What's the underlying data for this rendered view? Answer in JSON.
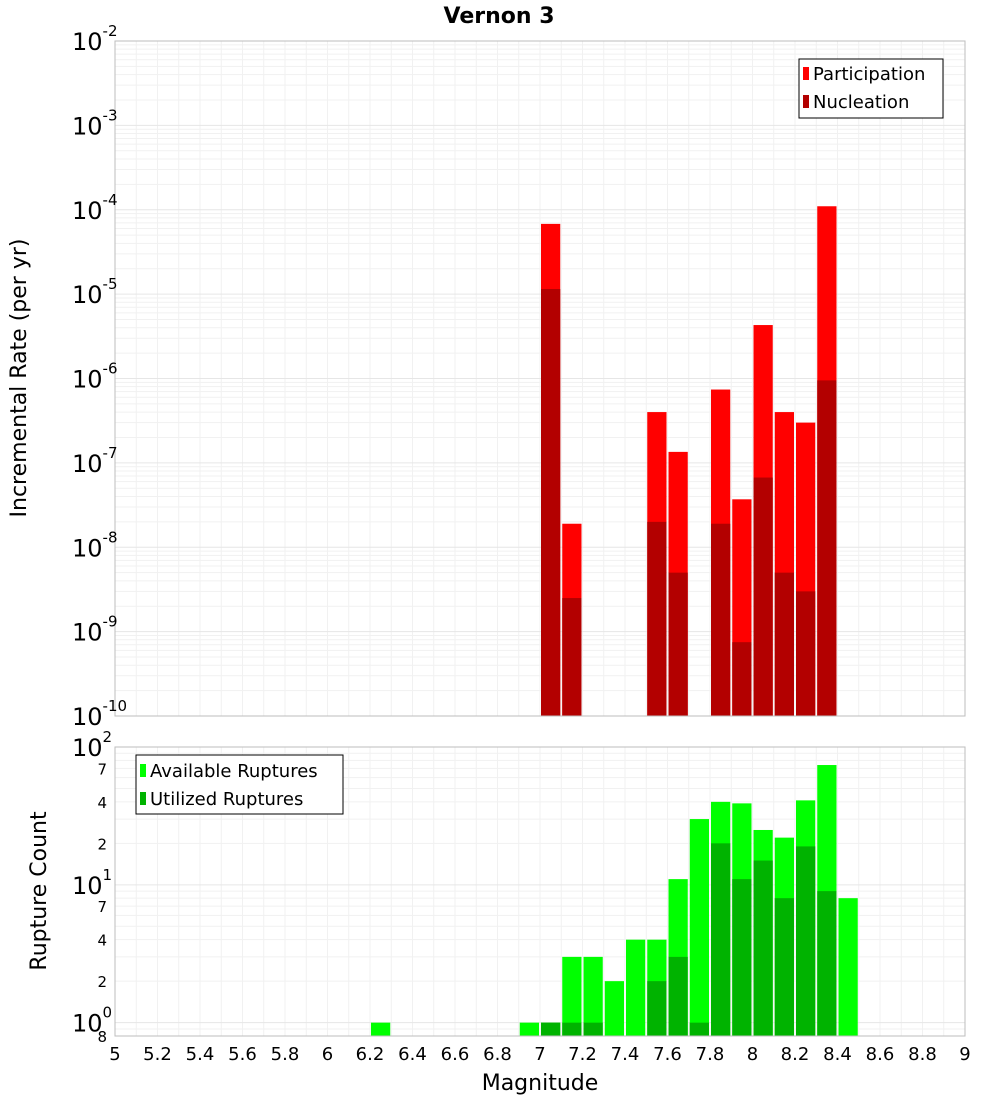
{
  "title": "Vernon 3",
  "xlabel": "Magnitude",
  "xlim": [
    5,
    9
  ],
  "x_ticks": [
    "5",
    "5.2",
    "5.4",
    "5.6",
    "5.8",
    "6",
    "6.2",
    "6.4",
    "6.6",
    "6.8",
    "7",
    "7.2",
    "7.4",
    "7.6",
    "7.8",
    "8",
    "8.2",
    "8.4",
    "8.6",
    "8.8",
    "9"
  ],
  "chart_data": [
    {
      "type": "bar",
      "title": "Vernon 3",
      "xlabel": "Magnitude",
      "ylabel": "Incremental Rate (per yr)",
      "yscale": "log",
      "ylim": [
        1e-10,
        0.01
      ],
      "xlim": [
        5,
        9
      ],
      "bar_width": 0.1,
      "y_tick_exponents": [
        -2,
        -3,
        -4,
        -5,
        -6,
        -7,
        -8,
        -9,
        -10
      ],
      "legend_position": "top-right",
      "x": [
        7.05,
        7.15,
        7.55,
        7.65,
        7.85,
        7.95,
        8.05,
        8.15,
        8.25,
        8.35
      ],
      "series": [
        {
          "name": "Participation",
          "color": "#ff0000",
          "values": [
            6.8e-05,
            1.9e-08,
            4e-07,
            1.35e-07,
            7.4e-07,
            3.7e-08,
            4.3e-06,
            4e-07,
            3e-07,
            0.00011
          ]
        },
        {
          "name": "Nucleation",
          "color": "#b30000",
          "values": [
            1.15e-05,
            2.5e-09,
            2e-08,
            5e-09,
            1.9e-08,
            7.5e-10,
            6.7e-08,
            5e-09,
            3e-09,
            9.5e-07
          ]
        }
      ]
    },
    {
      "type": "bar",
      "xlabel": "Magnitude",
      "ylabel": "Rupture Count",
      "yscale": "log",
      "ylim": [
        0.8,
        100
      ],
      "xlim": [
        5,
        9
      ],
      "bar_width": 0.1,
      "y_major_ticks": [
        {
          "value": 100,
          "base": "10",
          "exp": "2"
        },
        {
          "value": 10,
          "base": "10",
          "exp": "1"
        },
        {
          "value": 1,
          "base": "10",
          "exp": "0"
        }
      ],
      "y_minor_ticks": [
        {
          "value": 70,
          "label": "7"
        },
        {
          "value": 40,
          "label": "4"
        },
        {
          "value": 20,
          "label": "2"
        },
        {
          "value": 7,
          "label": "7"
        },
        {
          "value": 4,
          "label": "4"
        },
        {
          "value": 2,
          "label": "2"
        },
        {
          "value": 0.8,
          "label": "8"
        }
      ],
      "legend_position": "top-left",
      "x": [
        6.25,
        6.95,
        7.05,
        7.15,
        7.25,
        7.35,
        7.45,
        7.55,
        7.65,
        7.75,
        7.85,
        7.95,
        8.05,
        8.15,
        8.25,
        8.35,
        8.45
      ],
      "series": [
        {
          "name": "Available Ruptures",
          "color": "#00ff00",
          "values": [
            1,
            1,
            1,
            3,
            3,
            2,
            4,
            4,
            11,
            30,
            40,
            39,
            25,
            22,
            41,
            74,
            8
          ]
        },
        {
          "name": "Utilized Ruptures",
          "color": "#00b300",
          "values": [
            0,
            0,
            1,
            1,
            1,
            0,
            0,
            2,
            3,
            1,
            20,
            11,
            15,
            8,
            19,
            9,
            0
          ]
        }
      ]
    }
  ]
}
